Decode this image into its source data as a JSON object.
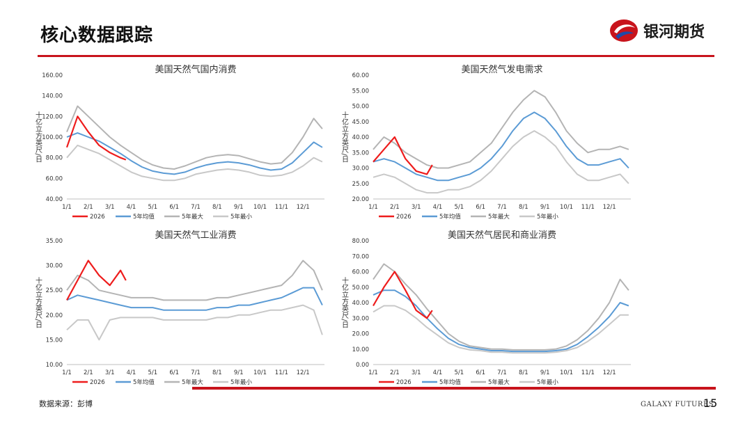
{
  "header": {
    "title": "核心数据跟踪",
    "brand_name": "银河期货"
  },
  "footer": {
    "source": "数据来源：彭博",
    "brand_en": "GALAXY FUTURES",
    "page_number": "15"
  },
  "colors": {
    "accent": "#c8141c",
    "series_2026": "#ee1c1c",
    "series_avg": "#5b9bd5",
    "series_max": "#b4b4b4",
    "series_min": "#c8c8c8"
  },
  "chart_data": [
    {
      "type": "line",
      "title": "美国天然气国内消费",
      "ylabel": "十亿立方英尺/日",
      "ylim": [
        40,
        160
      ],
      "yticks": [
        "40.00",
        "60.00",
        "80.00",
        "100.00",
        "120.00",
        "140.00",
        "160.00"
      ],
      "xticks": [
        "1/1",
        "2/1",
        "3/1",
        "4/1",
        "5/1",
        "6/1",
        "7/1",
        "8/1",
        "9/1",
        "10/1",
        "11/1",
        "12/1"
      ],
      "legend": [
        "2026",
        "5年均值",
        "5年最大",
        "5年最小"
      ],
      "series": [
        {
          "name": "2026",
          "x": [
            0,
            0.5,
            1,
            1.5,
            2,
            2.5,
            2.75
          ],
          "values": [
            90,
            120,
            105,
            92,
            85,
            80,
            78
          ]
        },
        {
          "name": "5年均值",
          "x": [
            0,
            0.5,
            1,
            1.5,
            2,
            2.5,
            3,
            3.5,
            4,
            4.5,
            5,
            5.5,
            6,
            6.5,
            7,
            7.5,
            8,
            8.5,
            9,
            9.5,
            10,
            10.5,
            11,
            11.5,
            11.9
          ],
          "values": [
            100,
            104,
            100,
            96,
            90,
            84,
            77,
            71,
            67,
            65,
            64,
            66,
            70,
            73,
            75,
            76,
            75,
            73,
            70,
            68,
            69,
            75,
            85,
            95,
            90
          ]
        },
        {
          "name": "5年最大",
          "x": [
            0,
            0.5,
            1,
            1.5,
            2,
            2.5,
            3,
            3.5,
            4,
            4.5,
            5,
            5.5,
            6,
            6.5,
            7,
            7.5,
            8,
            8.5,
            9,
            9.5,
            10,
            10.5,
            11,
            11.5,
            11.9
          ],
          "values": [
            105,
            130,
            120,
            110,
            100,
            92,
            85,
            78,
            73,
            70,
            69,
            72,
            76,
            80,
            82,
            83,
            82,
            79,
            76,
            74,
            75,
            85,
            100,
            118,
            108
          ]
        },
        {
          "name": "5年最小",
          "x": [
            0,
            0.5,
            1,
            1.5,
            2,
            2.5,
            3,
            3.5,
            4,
            4.5,
            5,
            5.5,
            6,
            6.5,
            7,
            7.5,
            8,
            8.5,
            9,
            9.5,
            10,
            10.5,
            11,
            11.5,
            11.9
          ],
          "values": [
            80,
            92,
            88,
            84,
            78,
            72,
            66,
            62,
            60,
            58,
            58,
            60,
            64,
            66,
            68,
            69,
            68,
            66,
            63,
            62,
            63,
            66,
            72,
            80,
            76
          ]
        }
      ]
    },
    {
      "type": "line",
      "title": "美国天然气发电需求",
      "ylabel": "十亿立方英尺/日",
      "ylim": [
        20,
        60
      ],
      "yticks": [
        "20.00",
        "25.00",
        "30.00",
        "35.00",
        "40.00",
        "45.00",
        "50.00",
        "55.00",
        "60.00"
      ],
      "xticks": [
        "1/1",
        "2/1",
        "3/1",
        "4/1",
        "5/1",
        "6/1",
        "7/1",
        "8/1",
        "9/1",
        "10/1",
        "11/1",
        "12/1"
      ],
      "legend": [
        "2026",
        "5年均值",
        "5年最大",
        "5年最小"
      ],
      "series": [
        {
          "name": "2026",
          "x": [
            0,
            0.5,
            1,
            1.5,
            2,
            2.5,
            2.75
          ],
          "values": [
            32,
            36,
            40,
            33,
            29,
            28,
            31
          ]
        },
        {
          "name": "5年均值",
          "x": [
            0,
            0.5,
            1,
            1.5,
            2,
            2.5,
            3,
            3.5,
            4,
            4.5,
            5,
            5.5,
            6,
            6.5,
            7,
            7.5,
            8,
            8.5,
            9,
            9.5,
            10,
            10.5,
            11,
            11.5,
            11.9
          ],
          "values": [
            32,
            33,
            32,
            30,
            28,
            27,
            26,
            26,
            27,
            28,
            30,
            33,
            37,
            42,
            46,
            48,
            46,
            42,
            37,
            33,
            31,
            31,
            32,
            33,
            30
          ]
        },
        {
          "name": "5年最大",
          "x": [
            0,
            0.5,
            1,
            1.5,
            2,
            2.5,
            3,
            3.5,
            4,
            4.5,
            5,
            5.5,
            6,
            6.5,
            7,
            7.5,
            8,
            8.5,
            9,
            9.5,
            10,
            10.5,
            11,
            11.5,
            11.9
          ],
          "values": [
            36,
            40,
            38,
            35,
            33,
            31,
            30,
            30,
            31,
            32,
            35,
            38,
            43,
            48,
            52,
            55,
            53,
            48,
            42,
            38,
            35,
            36,
            36,
            37,
            36
          ]
        },
        {
          "name": "5年最小",
          "x": [
            0,
            0.5,
            1,
            1.5,
            2,
            2.5,
            3,
            3.5,
            4,
            4.5,
            5,
            5.5,
            6,
            6.5,
            7,
            7.5,
            8,
            8.5,
            9,
            9.5,
            10,
            10.5,
            11,
            11.5,
            11.9
          ],
          "values": [
            27,
            28,
            27,
            25,
            23,
            22,
            22,
            23,
            23,
            24,
            26,
            29,
            33,
            37,
            40,
            42,
            40,
            37,
            32,
            28,
            26,
            26,
            27,
            28,
            25
          ]
        }
      ]
    },
    {
      "type": "line",
      "title": "美国天然气工业消费",
      "ylabel": "十亿立方英尺/日",
      "ylim": [
        10,
        35
      ],
      "yticks": [
        "10.00",
        "15.00",
        "20.00",
        "25.00",
        "30.00",
        "35.00"
      ],
      "xticks": [
        "1/1",
        "2/1",
        "3/1",
        "4/1",
        "5/1",
        "6/1",
        "7/1",
        "8/1",
        "9/1",
        "10/1",
        "11/1",
        "12/1"
      ],
      "legend": [
        "2026",
        "5年均值",
        "5年最大",
        "5年最小"
      ],
      "series": [
        {
          "name": "2026",
          "x": [
            0,
            0.5,
            1,
            1.5,
            2,
            2.5,
            2.75
          ],
          "values": [
            23,
            27,
            31,
            28,
            26,
            29,
            27
          ]
        },
        {
          "name": "5年均值",
          "x": [
            0,
            0.5,
            1,
            1.5,
            2,
            2.5,
            3,
            3.5,
            4,
            4.5,
            5,
            5.5,
            6,
            6.5,
            7,
            7.5,
            8,
            8.5,
            9,
            9.5,
            10,
            10.5,
            11,
            11.5,
            11.9
          ],
          "values": [
            23,
            24,
            23.5,
            23,
            22.5,
            22,
            21.5,
            21.5,
            21.5,
            21,
            21,
            21,
            21,
            21,
            21.5,
            21.5,
            22,
            22,
            22.5,
            23,
            23.5,
            24.5,
            25.5,
            25.5,
            22
          ]
        },
        {
          "name": "5年最大",
          "x": [
            0,
            0.5,
            1,
            1.5,
            2,
            2.5,
            3,
            3.5,
            4,
            4.5,
            5,
            5.5,
            6,
            6.5,
            7,
            7.5,
            8,
            8.5,
            9,
            9.5,
            10,
            10.5,
            11,
            11.5,
            11.9
          ],
          "values": [
            25,
            28,
            27,
            25,
            24.5,
            24,
            23.5,
            23.5,
            23.5,
            23,
            23,
            23,
            23,
            23,
            23.5,
            23.5,
            24,
            24.5,
            25,
            25.5,
            26,
            28,
            31,
            29,
            25
          ]
        },
        {
          "name": "5年最小",
          "x": [
            0,
            0.5,
            1,
            1.5,
            2,
            2.5,
            3,
            3.5,
            4,
            4.5,
            5,
            5.5,
            6,
            6.5,
            7,
            7.5,
            8,
            8.5,
            9,
            9.5,
            10,
            10.5,
            11,
            11.5,
            11.9
          ],
          "values": [
            17,
            19,
            19,
            15,
            19,
            19.5,
            19.5,
            19.5,
            19.5,
            19,
            19,
            19,
            19,
            19,
            19.5,
            19.5,
            20,
            20,
            20.5,
            21,
            21,
            21.5,
            22,
            21,
            16
          ]
        }
      ]
    },
    {
      "type": "line",
      "title": "美国天然气居民和商业消费",
      "ylabel": "十亿立方英尺/日",
      "ylim": [
        0,
        80
      ],
      "yticks": [
        "0.00",
        "10.00",
        "20.00",
        "30.00",
        "40.00",
        "50.00",
        "60.00",
        "70.00",
        "80.00"
      ],
      "xticks": [
        "1/1",
        "2/1",
        "3/1",
        "4/1",
        "5/1",
        "6/1",
        "7/1",
        "8/1",
        "9/1",
        "10/1",
        "11/1",
        "12/1"
      ],
      "legend": [
        "2026",
        "5年均值",
        "5年最大",
        "5年最小"
      ],
      "series": [
        {
          "name": "2026",
          "x": [
            0,
            0.5,
            1,
            1.5,
            2,
            2.5,
            2.75
          ],
          "values": [
            38,
            50,
            60,
            48,
            35,
            30,
            35
          ]
        },
        {
          "name": "5年均值",
          "x": [
            0,
            0.5,
            1,
            1.5,
            2,
            2.5,
            3,
            3.5,
            4,
            4.5,
            5,
            5.5,
            6,
            6.5,
            7,
            7.5,
            8,
            8.5,
            9,
            9.5,
            10,
            10.5,
            11,
            11.5,
            11.9
          ],
          "values": [
            45,
            48,
            48,
            44,
            38,
            30,
            23,
            17,
            13,
            11,
            10,
            9,
            9,
            8.5,
            8.5,
            8.5,
            8.5,
            9,
            10,
            13,
            18,
            24,
            31,
            40,
            38
          ]
        },
        {
          "name": "5年最大",
          "x": [
            0,
            0.5,
            1,
            1.5,
            2,
            2.5,
            3,
            3.5,
            4,
            4.5,
            5,
            5.5,
            6,
            6.5,
            7,
            7.5,
            8,
            8.5,
            9,
            9.5,
            10,
            10.5,
            11,
            11.5,
            11.9
          ],
          "values": [
            55,
            65,
            60,
            52,
            45,
            36,
            28,
            20,
            15,
            12,
            11,
            10,
            10,
            9.5,
            9.5,
            9.5,
            9.5,
            10,
            12,
            16,
            22,
            30,
            40,
            55,
            48
          ]
        },
        {
          "name": "5年最小",
          "x": [
            0,
            0.5,
            1,
            1.5,
            2,
            2.5,
            3,
            3.5,
            4,
            4.5,
            5,
            5.5,
            6,
            6.5,
            7,
            7.5,
            8,
            8.5,
            9,
            9.5,
            10,
            10.5,
            11,
            11.5,
            11.9
          ],
          "values": [
            34,
            38,
            38,
            35,
            30,
            24,
            19,
            14,
            11,
            9.5,
            9,
            8,
            8,
            7.5,
            7.5,
            7.5,
            7.5,
            8,
            9,
            11,
            15,
            20,
            26,
            32,
            32
          ]
        }
      ]
    }
  ]
}
